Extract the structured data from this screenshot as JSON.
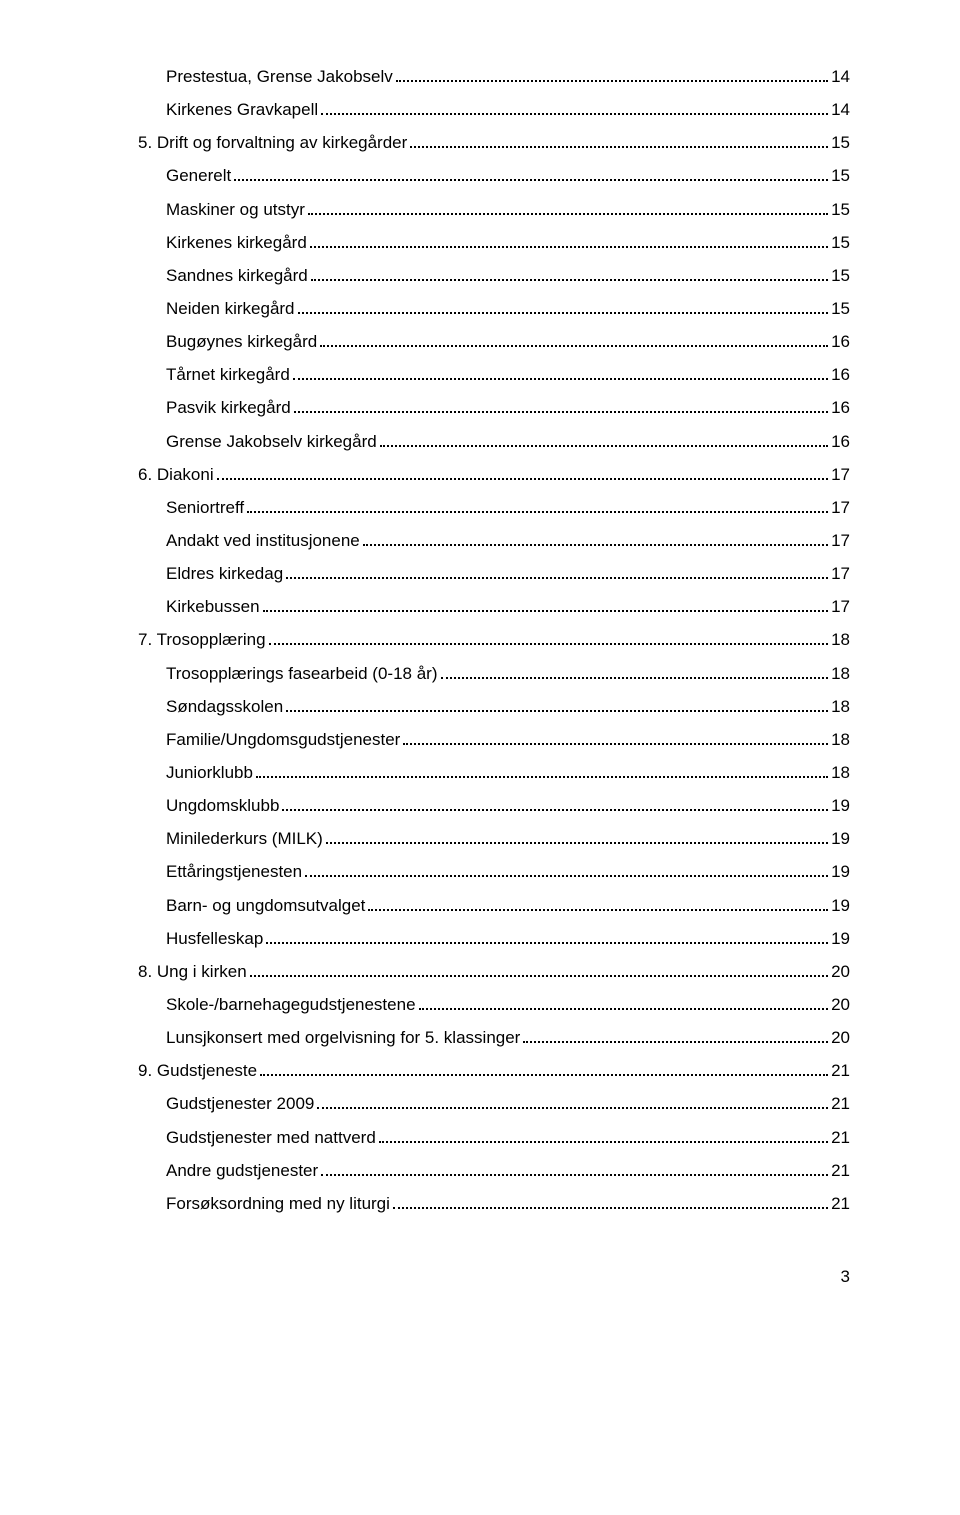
{
  "toc": [
    {
      "label": "Prestestua, Grense Jakobselv",
      "page": "14",
      "indent": 2
    },
    {
      "label": "Kirkenes Gravkapell",
      "page": "14",
      "indent": 2
    },
    {
      "label": "5. Drift og forvaltning av kirkegårder",
      "page": "15",
      "indent": 1
    },
    {
      "label": "Generelt",
      "page": "15",
      "indent": 2
    },
    {
      "label": "Maskiner og utstyr",
      "page": "15",
      "indent": 2
    },
    {
      "label": "Kirkenes kirkegård",
      "page": "15",
      "indent": 2
    },
    {
      "label": "Sandnes kirkegård",
      "page": "15",
      "indent": 2
    },
    {
      "label": "Neiden kirkegård",
      "page": "15",
      "indent": 2
    },
    {
      "label": "Bugøynes kirkegård",
      "page": "16",
      "indent": 2
    },
    {
      "label": "Tårnet kirkegård",
      "page": "16",
      "indent": 2
    },
    {
      "label": "Pasvik kirkegård",
      "page": "16",
      "indent": 2
    },
    {
      "label": "Grense Jakobselv kirkegård",
      "page": "16",
      "indent": 2
    },
    {
      "label": "6. Diakoni",
      "page": "17",
      "indent": 1
    },
    {
      "label": "Seniortreff",
      "page": "17",
      "indent": 2
    },
    {
      "label": "Andakt ved institusjonene",
      "page": "17",
      "indent": 2
    },
    {
      "label": "Eldres kirkedag",
      "page": "17",
      "indent": 2
    },
    {
      "label": "Kirkebussen",
      "page": "17",
      "indent": 2
    },
    {
      "label": "7. Trosopplæring",
      "page": "18",
      "indent": 1
    },
    {
      "label": "Trosopplærings fasearbeid (0-18 år)",
      "page": "18",
      "indent": 2
    },
    {
      "label": "Søndagsskolen",
      "page": "18",
      "indent": 2
    },
    {
      "label": "Familie/Ungdomsgudstjenester",
      "page": "18",
      "indent": 2
    },
    {
      "label": "Juniorklubb",
      "page": "18",
      "indent": 2
    },
    {
      "label": "Ungdomsklubb",
      "page": "19",
      "indent": 2
    },
    {
      "label": "Minilederkurs (MILK)",
      "page": "19",
      "indent": 2
    },
    {
      "label": "Ettåringstjenesten",
      "page": "19",
      "indent": 2
    },
    {
      "label": "Barn- og ungdomsutvalget",
      "page": "19",
      "indent": 2
    },
    {
      "label": "Husfelleskap",
      "page": "19",
      "indent": 2
    },
    {
      "label": "8. Ung i kirken",
      "page": "20",
      "indent": 1
    },
    {
      "label": "Skole-/barnehagegudstjenestene",
      "page": "20",
      "indent": 2
    },
    {
      "label": "Lunsjkonsert med orgelvisning for 5. klassinger",
      "page": "20",
      "indent": 2
    },
    {
      "label": "9. Gudstjeneste",
      "page": "21",
      "indent": 1
    },
    {
      "label": "Gudstjenester 2009",
      "page": "21",
      "indent": 2
    },
    {
      "label": "Gudstjenester med nattverd",
      "page": "21",
      "indent": 2
    },
    {
      "label": "Andre gudstjenester",
      "page": "21",
      "indent": 2
    },
    {
      "label": "Forsøksordning med ny liturgi",
      "page": "21",
      "indent": 2
    }
  ],
  "page_number": "3",
  "style": {
    "text_color": "#000000",
    "background_color": "#ffffff",
    "font_size_pt": 13,
    "font_family": "Arial"
  }
}
